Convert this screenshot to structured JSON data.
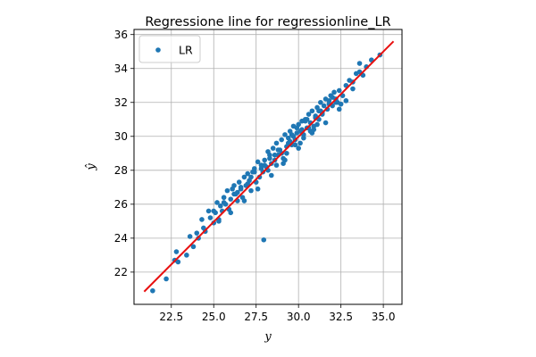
{
  "chart_data": {
    "type": "scatter",
    "title": "Regressione line for regressionline_LR",
    "xlabel": "y",
    "ylabel": "ŷ",
    "xlim": [
      20.3,
      36.1
    ],
    "ylim": [
      20.1,
      36.3
    ],
    "xticks": [
      22.5,
      25.0,
      27.5,
      30.0,
      32.5,
      35.0
    ],
    "xtick_labels": [
      "22.5",
      "25.0",
      "27.5",
      "30.0",
      "32.5",
      "35.0"
    ],
    "yticks": [
      22,
      24,
      26,
      28,
      30,
      32,
      34,
      36
    ],
    "ytick_labels": [
      "22",
      "24",
      "26",
      "28",
      "30",
      "32",
      "34",
      "36"
    ],
    "grid": true,
    "legend": {
      "position": "top-left",
      "entries": [
        "LR"
      ]
    },
    "colors": {
      "points": "#1f77b4",
      "line": "#e81010",
      "grid": "#b0b0b0"
    },
    "regression_line": {
      "x": [
        20.9,
        35.6
      ],
      "y": [
        20.85,
        35.6
      ]
    },
    "series": [
      {
        "name": "LR",
        "x": [
          21.4,
          22.2,
          22.7,
          22.8,
          22.9,
          23.4,
          23.6,
          23.8,
          24.0,
          24.1,
          24.3,
          24.4,
          24.5,
          24.7,
          24.8,
          25.0,
          25.1,
          25.2,
          25.3,
          25.4,
          25.5,
          25.6,
          25.7,
          25.8,
          25.9,
          26.0,
          26.1,
          26.2,
          26.3,
          26.4,
          26.5,
          26.6,
          26.7,
          26.8,
          26.9,
          27.0,
          27.1,
          27.2,
          27.3,
          27.4,
          27.5,
          27.6,
          27.7,
          27.8,
          27.9,
          28.0,
          28.1,
          28.2,
          28.3,
          28.4,
          28.5,
          28.6,
          28.7,
          28.8,
          28.9,
          29.0,
          29.1,
          29.2,
          29.3,
          29.4,
          29.5,
          29.6,
          29.7,
          29.8,
          29.9,
          30.0,
          30.1,
          30.2,
          30.3,
          30.4,
          30.5,
          30.6,
          30.7,
          30.8,
          30.9,
          31.0,
          31.1,
          31.2,
          31.3,
          31.4,
          31.5,
          31.6,
          31.7,
          31.8,
          31.9,
          32.0,
          32.1,
          32.2,
          32.3,
          32.4,
          32.5,
          32.6,
          32.8,
          33.0,
          33.2,
          33.4,
          33.6,
          33.8,
          34.0,
          34.3,
          34.8,
          27.95,
          25.0,
          25.3,
          25.6,
          26.0,
          26.4,
          26.8,
          27.2,
          27.6,
          28.0,
          28.4,
          28.8,
          29.2,
          29.6,
          30.0,
          30.4,
          30.8,
          31.2,
          31.6,
          32.0,
          32.4,
          32.8,
          33.2,
          33.6,
          26.2,
          26.6,
          27.0,
          27.4,
          27.8,
          28.2,
          28.6,
          29.0,
          29.4,
          29.8,
          30.2,
          30.6,
          31.0,
          31.4,
          31.8,
          32.2,
          29.1,
          29.5,
          29.9,
          30.3,
          30.7,
          31.1,
          28.3,
          28.7,
          29.3,
          29.7,
          30.1,
          30.5,
          30.9,
          31.3
        ],
        "y": [
          20.9,
          21.6,
          22.7,
          23.2,
          22.6,
          23.0,
          24.1,
          23.5,
          24.3,
          24.0,
          25.1,
          24.6,
          24.4,
          25.6,
          25.2,
          24.9,
          25.5,
          26.1,
          25.1,
          25.9,
          25.6,
          26.4,
          26.0,
          26.8,
          25.7,
          26.3,
          26.9,
          27.1,
          26.6,
          26.2,
          27.3,
          26.9,
          26.4,
          27.6,
          27.1,
          27.8,
          27.4,
          26.8,
          27.9,
          28.1,
          27.3,
          28.5,
          27.6,
          28.3,
          27.9,
          28.6,
          28.2,
          29.1,
          28.7,
          28.4,
          29.3,
          28.6,
          29.6,
          28.9,
          29.2,
          29.8,
          28.7,
          30.1,
          29.4,
          29.9,
          30.3,
          29.5,
          30.6,
          29.8,
          30.2,
          30.7,
          30.3,
          30.9,
          30.1,
          31.0,
          30.5,
          31.3,
          30.8,
          31.5,
          30.6,
          31.2,
          31.7,
          31.0,
          32.0,
          31.4,
          31.8,
          32.2,
          31.6,
          32.1,
          32.4,
          31.8,
          32.6,
          32.2,
          32.0,
          32.7,
          31.9,
          32.4,
          33.0,
          33.3,
          32.8,
          33.7,
          34.3,
          33.6,
          34.1,
          34.5,
          34.8,
          23.9,
          25.6,
          25.0,
          26.1,
          25.5,
          26.7,
          26.2,
          27.6,
          26.9,
          28.3,
          27.7,
          29.2,
          28.6,
          30.1,
          29.3,
          30.9,
          30.2,
          31.5,
          30.8,
          32.3,
          31.6,
          32.1,
          33.2,
          33.8,
          26.6,
          27.0,
          27.2,
          27.9,
          28.1,
          28.0,
          28.9,
          29.0,
          29.6,
          29.5,
          30.4,
          30.5,
          31.1,
          31.3,
          31.9,
          32.0,
          28.4,
          29.7,
          30.5,
          29.9,
          30.3,
          30.7,
          28.9,
          28.3,
          29.0,
          30.0,
          29.6,
          31.0,
          30.4,
          31.5
        ]
      }
    ]
  }
}
